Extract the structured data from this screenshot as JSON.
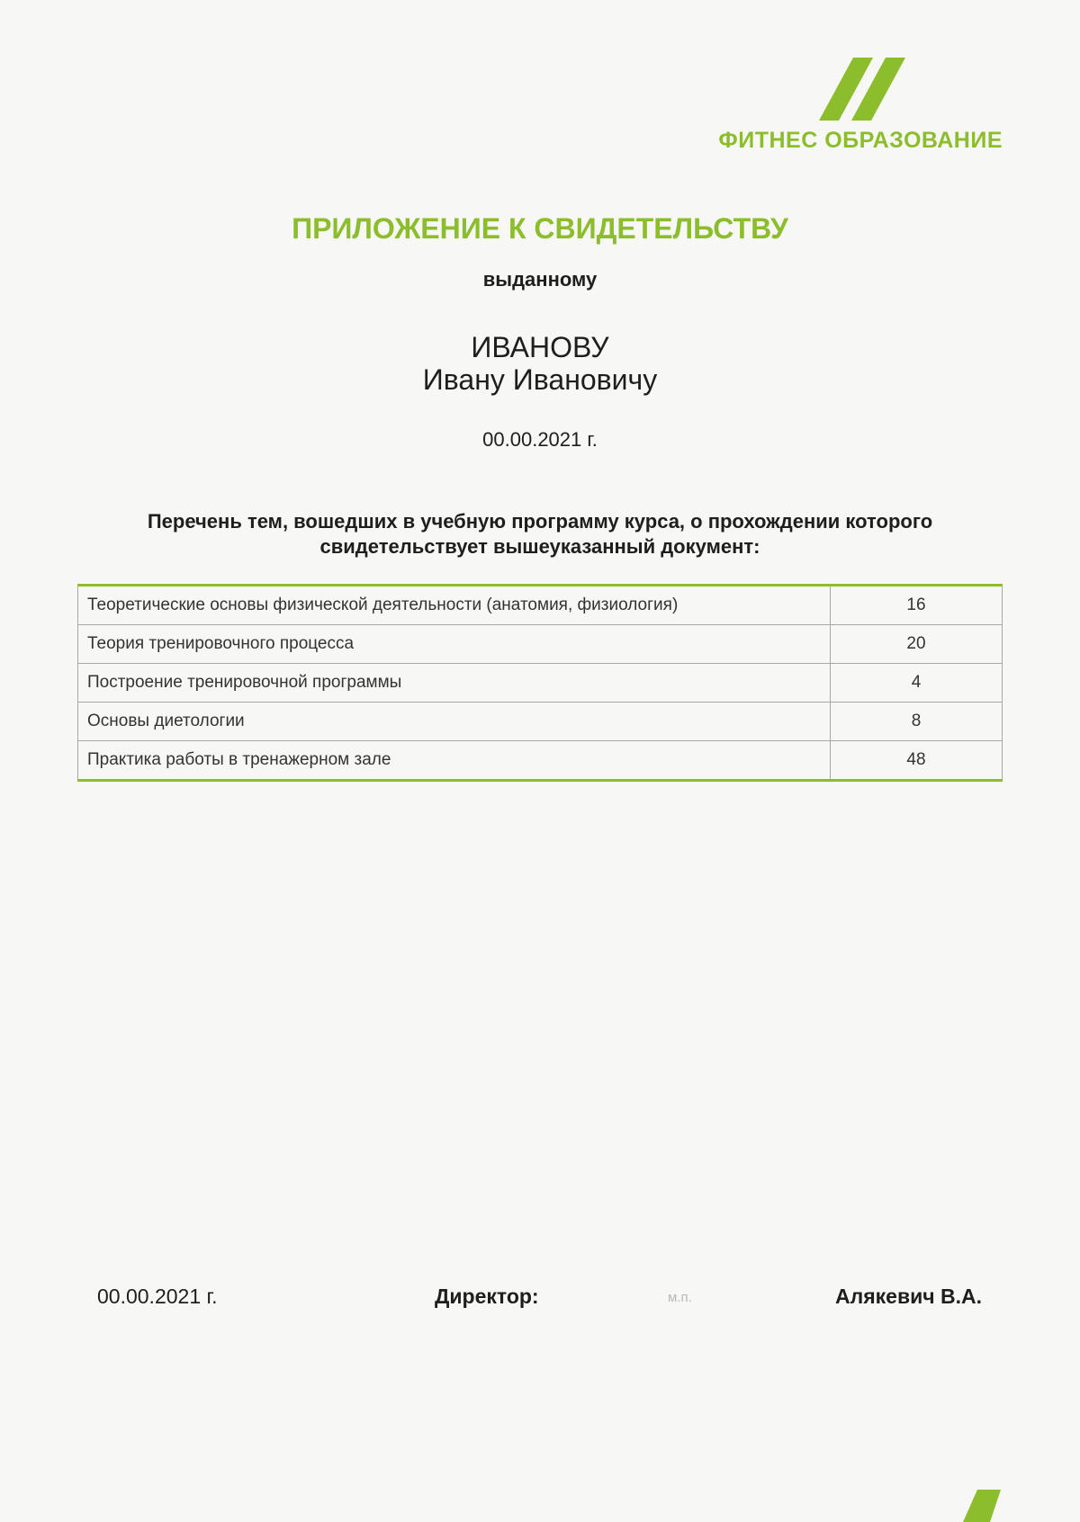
{
  "brand": {
    "name": "ФИТНЕС ОБРАЗОВАНИЕ",
    "color": "#8cbd2c",
    "logo_icon": "double-slash-logo"
  },
  "header": {
    "title": "ПРИЛОЖЕНИЕ К СВИДЕТЕЛЬСТВУ",
    "issued_to_label": "выданному"
  },
  "recipient": {
    "surname": "ИВАНОВУ",
    "given_names": "Ивану Ивановичу"
  },
  "issue_date": "00.00.2021 г.",
  "intro": {
    "line1": "Перечень тем, вошедших в учебную программу курса, о прохождении которого",
    "line2": "свидетельствует вышеуказанный документ:"
  },
  "topics": [
    {
      "name": "Теоретические основы физической деятельности (анатомия, физиология)",
      "hours": "16"
    },
    {
      "name": "Теория тренировочного процесса",
      "hours": "20"
    },
    {
      "name": "Построение тренировочной программы",
      "hours": "4"
    },
    {
      "name": "Основы диетологии",
      "hours": "8"
    },
    {
      "name": "Практика работы в тренажерном зале",
      "hours": "48"
    }
  ],
  "footer": {
    "date": "00.00.2021 г.",
    "director_label": "Директор:",
    "stamp_label": "м.п.",
    "director_name": "Алякевич В.А."
  }
}
